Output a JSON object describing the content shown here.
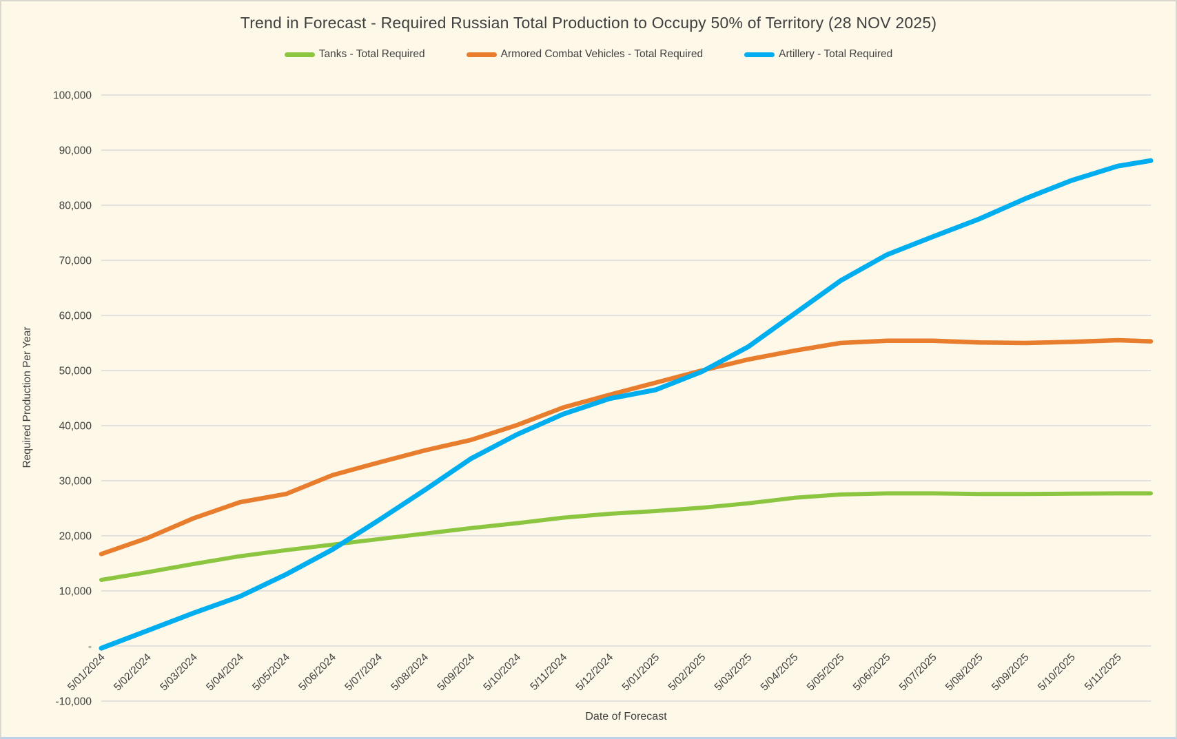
{
  "window": {
    "background": "#FDF8E8",
    "border_color": "#D9D7CE",
    "bottom_edge_color": "#BBD2E8"
  },
  "chart_data": {
    "type": "line",
    "title": "Trend in Forecast - Required Russian Total Production to Occupy 50% of Territory (28 NOV 2025)",
    "xlabel": "Date of Forecast",
    "ylabel": "Required Production Per Year",
    "ylim": [
      -10000,
      100000
    ],
    "ytick_step": 10000,
    "y_tick_labels": [
      "100,000",
      "90,000",
      "80,000",
      "70,000",
      "60,000",
      "50,000",
      "40,000",
      "30,000",
      "20,000",
      "10,000",
      "-",
      "-10,000"
    ],
    "x_labels": [
      "5/01/2024",
      "5/02/2024",
      "5/03/2024",
      "5/04/2024",
      "5/05/2024",
      "5/06/2024",
      "5/07/2024",
      "5/08/2024",
      "5/09/2024",
      "5/10/2024",
      "5/11/2024",
      "5/12/2024",
      "5/01/2025",
      "5/02/2025",
      "5/03/2025",
      "5/04/2025",
      "5/05/2025",
      "5/06/2025",
      "5/07/2025",
      "5/08/2025",
      "5/09/2025",
      "5/10/2025",
      "5/11/2025"
    ],
    "grid": "horizontal",
    "grid_color": "#D9D9D9",
    "text_color": "#404040",
    "legend_position": "top",
    "lines_extend_to_plot_right_edge": true,
    "series": [
      {
        "name": "Tanks - Total Required",
        "color": "#8CC540",
        "stroke_width": 6,
        "values": [
          12000,
          13400,
          14900,
          16300,
          17400,
          18400,
          19400,
          20400,
          21400,
          22300,
          23300,
          24000,
          24500,
          25100,
          25900,
          26900,
          27500,
          27700,
          27700,
          27600,
          27600,
          27650,
          27700
        ],
        "end_value": 27700
      },
      {
        "name": "Armored Combat Vehicles - Total Required",
        "color": "#E87D2E",
        "stroke_width": 6.5,
        "values": [
          16700,
          19600,
          23200,
          26100,
          27600,
          31000,
          33300,
          35500,
          37400,
          40100,
          43300,
          45600,
          47800,
          50000,
          52000,
          53600,
          55000,
          55400,
          55400,
          55100,
          55000,
          55200,
          55500
        ],
        "end_value": 55300
      },
      {
        "name": "Artillery - Total Required",
        "color": "#00AEEF",
        "stroke_width": 7,
        "values": [
          -400,
          2800,
          6000,
          9000,
          13000,
          17500,
          22800,
          28300,
          34000,
          38400,
          42100,
          44900,
          46500,
          49800,
          54300,
          60300,
          66300,
          71000,
          74300,
          77500,
          81200,
          84500,
          87100
        ],
        "end_value": 88100
      }
    ]
  }
}
